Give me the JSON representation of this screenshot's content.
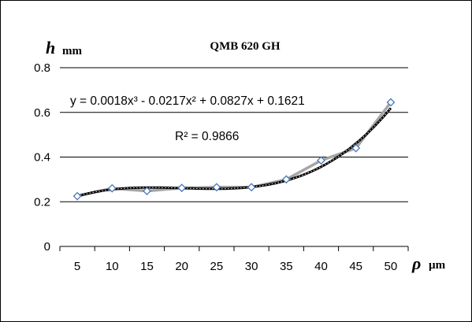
{
  "chart_data": {
    "type": "line",
    "title": "QMB 620 GH",
    "ylabel_symbol": "h",
    "ylabel_unit": "mm",
    "xlabel_symbol": "ρ",
    "xlabel_unit": "µm",
    "categories": [
      "5",
      "10",
      "15",
      "20",
      "25",
      "30",
      "35",
      "40",
      "45",
      "50"
    ],
    "ylim": [
      0,
      0.8
    ],
    "yticks": [
      "0",
      "0.2",
      "0.4",
      "0.6",
      "0.8"
    ],
    "grid": true,
    "series": [
      {
        "values": [
          0.225,
          0.26,
          0.248,
          0.262,
          0.265,
          0.265,
          0.3,
          0.385,
          0.44,
          0.645
        ]
      }
    ],
    "trendline": {
      "type": "polynomial",
      "order": 3,
      "equation": "y = 0.0018x³ - 0.0217x² + 0.0827x + 0.1621",
      "r_squared": "R² = 0.9866",
      "coefficients": [
        0.0018,
        -0.0217,
        0.0827,
        0.1621
      ]
    },
    "colors": {
      "data_line": "#a6a6a6",
      "marker": "#4a76b8",
      "trendline": "#000000",
      "gridline": "#000000"
    }
  }
}
